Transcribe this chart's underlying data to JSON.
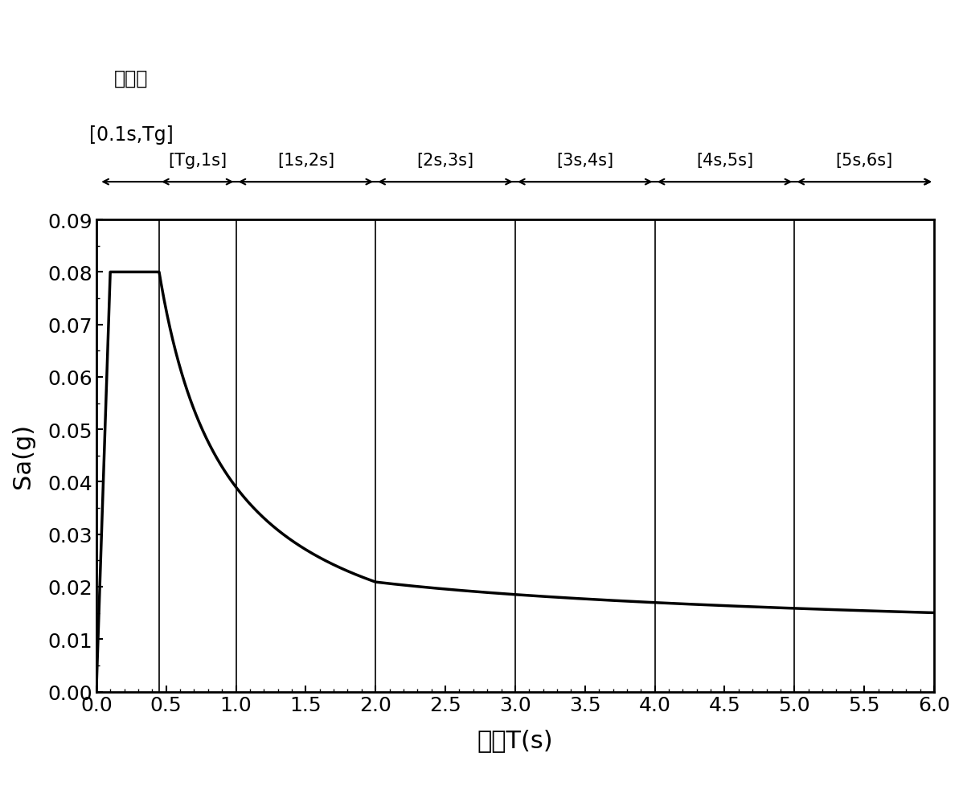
{
  "xlabel": "周期T(s)",
  "ylabel": "Sa(g)",
  "xlim": [
    0,
    6.0
  ],
  "ylim": [
    0.0,
    0.09
  ],
  "yticks": [
    0.0,
    0.01,
    0.02,
    0.03,
    0.04,
    0.05,
    0.06,
    0.07,
    0.08,
    0.09
  ],
  "xticks": [
    0.0,
    0.5,
    1.0,
    1.5,
    2.0,
    2.5,
    3.0,
    3.5,
    4.0,
    4.5,
    5.0,
    5.5,
    6.0
  ],
  "Tg": 0.45,
  "Sa_max": 0.08,
  "T0": 0.1,
  "gamma1": 0.9,
  "gamma2": 0.3,
  "T_transition": 2.0,
  "vertical_lines": [
    0.45,
    1.0,
    2.0,
    3.0,
    4.0,
    5.0
  ],
  "segment_labels": [
    "[Tg,1s]",
    "[1s,2s]",
    "[2s,3s]",
    "[3s,4s]",
    "[4s,5s]",
    "[5s,6s]"
  ],
  "segment_midpoints": [
    0.725,
    1.5,
    2.5,
    3.5,
    4.5,
    5.5
  ],
  "segment_left": [
    0.45,
    1.0,
    2.0,
    3.0,
    4.0,
    5.0
  ],
  "segment_right": [
    1.0,
    2.0,
    3.0,
    4.0,
    5.0,
    6.0
  ],
  "platform_label_line1": "平台段",
  "platform_label_line2": "[0.1s,Tg]",
  "background_color": "#ffffff",
  "curve_color": "#000000",
  "fontsize_axis_label": 22,
  "fontsize_tick": 18,
  "fontsize_segment": 15,
  "fontsize_platform": 17
}
